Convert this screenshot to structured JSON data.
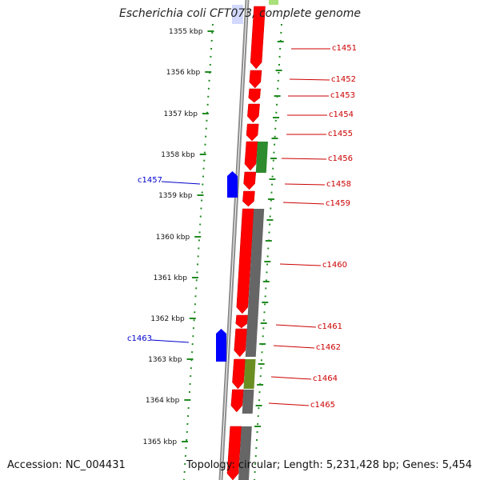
{
  "title": "Escherichia coli CFT073, complete genome",
  "accession_text": "Accession: NC_004431",
  "topology_text": "Topology: circular; Length: 5,231,428 bp; Genes: 5,454",
  "colors": {
    "forward_cds": "#0000ff",
    "reverse_cds": "#ff0000",
    "cog_gray": "#666666",
    "cog_green": "#2e8b2e",
    "cog_olive": "#6b8e23",
    "backbone": "#8c8c8c",
    "tick": "#228b22",
    "label_forward": "#0000cc",
    "label_reverse": "#cc0000"
  },
  "ticks": {
    "unit": "kbp",
    "labels": [
      "1355 kbp",
      "1356 kbp",
      "1357 kbp",
      "1358 kbp",
      "1359 kbp",
      "1360 kbp",
      "1361 kbp",
      "1362 kbp",
      "1363 kbp",
      "1364 kbp",
      "1365 kbp"
    ]
  },
  "genes": {
    "forward": [
      "c1457",
      "c1463"
    ],
    "reverse": [
      "c1451",
      "c1452",
      "c1453",
      "c1454",
      "c1455",
      "c1456",
      "c1458",
      "c1459",
      "c1460",
      "c1461",
      "c1462",
      "c1464",
      "c1465"
    ]
  }
}
